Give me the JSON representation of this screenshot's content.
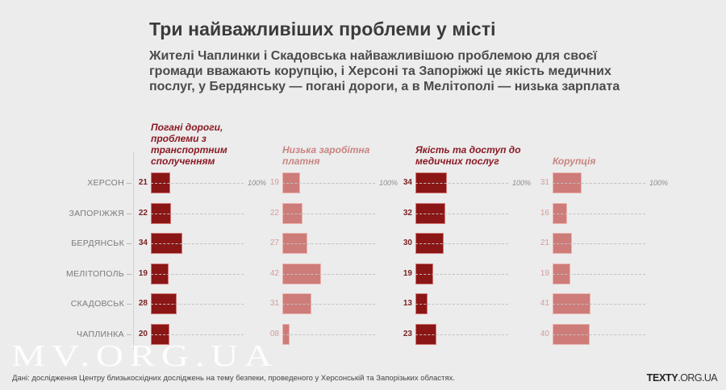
{
  "title": "Три найважливіших проблеми у місті",
  "subtitle_lines": [
    "Жителі Чаплинки і Скадовська найважливішою проблемою для своєї",
    "громади вважають корупцію, і Херсоні та Запоріжжі це якість медичних",
    "послуг, у Бердянську — погані дороги, а в Мелітополі — низька зарплата"
  ],
  "chart_data": {
    "type": "bar",
    "orientation": "horizontal",
    "title": "Три найважливіших проблеми у місті",
    "xlabel": "",
    "ylabel": "",
    "xlim": [
      0,
      100
    ],
    "max_label": "100%",
    "grid": false,
    "categories": [
      "ХЕРСОН",
      "ЗАПОРІЖЖЯ",
      "БЕРДЯНСЬК",
      "МЕЛІТОПОЛЬ",
      "СКАДОВСЬК",
      "ЧАПЛИНКА"
    ],
    "series": [
      {
        "name": "Погані дороги, проблеми з транспортним сполученням",
        "name_lines": [
          "Погані дороги,",
          "проблеми з",
          "транспортним",
          "сполученням"
        ],
        "values": [
          21,
          22,
          34,
          19,
          28,
          20
        ],
        "labels": [
          "21",
          "22",
          "34",
          "19",
          "28",
          "20"
        ],
        "color": "#8a1616",
        "style": "dark"
      },
      {
        "name": "Низька заробітна платня",
        "name_lines": [
          "Низька заробітна",
          "платня"
        ],
        "values": [
          19,
          22,
          27,
          42,
          31,
          8
        ],
        "labels": [
          "19",
          "22",
          "27",
          "42",
          "31",
          "08"
        ],
        "color": "#cd7c79",
        "style": "light"
      },
      {
        "name": "Якість та доступ до медичних послуг",
        "name_lines": [
          "Якість та доступ до",
          "медичних послуг"
        ],
        "values": [
          34,
          32,
          30,
          19,
          13,
          23
        ],
        "labels": [
          "34",
          "32",
          "30",
          "19",
          "13",
          "23"
        ],
        "color": "#8a1616",
        "style": "dark"
      },
      {
        "name": "Корупція",
        "name_lines": [
          "Корупція"
        ],
        "values": [
          31,
          16,
          21,
          19,
          41,
          40
        ],
        "labels": [
          "31",
          "16",
          "21",
          "19",
          "41",
          "40"
        ],
        "color": "#cd7c79",
        "style": "light"
      }
    ]
  },
  "watermark": "MV.ORG.UA",
  "source": "Дані: дослідження Центру близькосхідних досліджень на тему безпеки, проведеного у Херсонській та Запорізьких областях.",
  "brand": {
    "bold": "TEXTY",
    "light": ".ORG.UA"
  }
}
